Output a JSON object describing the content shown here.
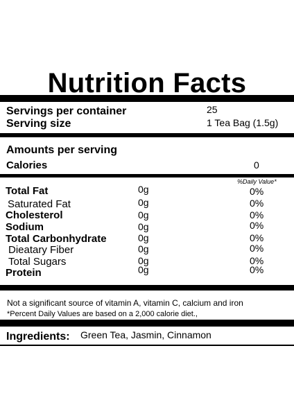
{
  "title": "Nutrition Facts",
  "servings": {
    "per_container_label": "Servings per container",
    "per_container_value": "25",
    "size_label": "Serving size",
    "size_value": "1 Tea Bag (1.5g)"
  },
  "amounts": {
    "header": "Amounts per serving",
    "calories_label": "Calories",
    "calories_value": "0"
  },
  "daily_value_header": "%Daily Value*",
  "nutrients": [
    {
      "name": "Total Fat",
      "amount": "0g",
      "dv": "0%"
    },
    {
      "name": "Saturated Fat",
      "amount": "0g",
      "dv": "0%"
    },
    {
      "name": "Cholesterol",
      "amount": "0g",
      "dv": "0%"
    },
    {
      "name": "Sodium",
      "amount": "0g",
      "dv": "0%"
    },
    {
      "name": "Total Carbonhydrate",
      "amount": "0g",
      "dv": "0%"
    },
    {
      "name": "Dieatary Fiber",
      "amount": "0g",
      "dv": "0%"
    },
    {
      "name": "Total Sugars",
      "amount": "0g",
      "dv": "0%"
    },
    {
      "name": "Protein",
      "amount": "0g",
      "dv": "0%"
    }
  ],
  "footnotes": {
    "vitamins": "Not a significant source of vitamin A, vitamin C, calcium and iron",
    "percent": "*Percent Daily Values are based on a 2,000 calorie diet.,"
  },
  "ingredients": {
    "label": "Ingredients:",
    "value": "Green Tea, Jasmin, Cinnamon"
  }
}
